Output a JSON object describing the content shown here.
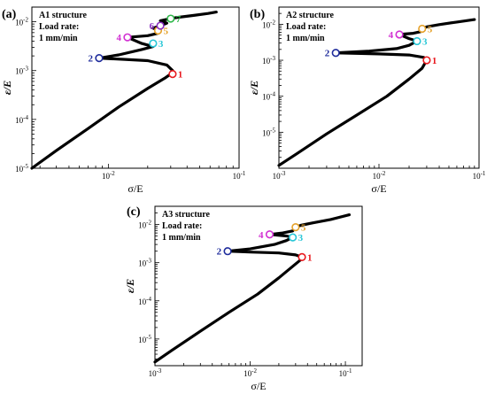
{
  "chart_data": [
    {
      "panel": "(a)",
      "type": "line",
      "annotation": [
        "A1 structure",
        "Load rate:",
        "1 mm/min"
      ],
      "xlabel": "σ/E",
      "ylabel": "ε/E",
      "xscale": "log",
      "yscale": "log",
      "xlim": [
        0.0026,
        0.1
      ],
      "ylim": [
        1e-05,
        0.02
      ],
      "x_ticks": [
        {
          "v": 0.01,
          "label": "10-2"
        },
        {
          "v": 0.1,
          "label": "10-1"
        }
      ],
      "y_ticks": [
        {
          "v": 1e-05,
          "label": "10-5"
        },
        {
          "v": 0.0001,
          "label": "10-4"
        },
        {
          "v": 0.001,
          "label": "10-3"
        },
        {
          "v": 0.01,
          "label": "10-2"
        }
      ],
      "curve": {
        "x": [
          0.0026,
          0.004,
          0.007,
          0.012,
          0.02,
          0.027,
          0.03,
          0.031,
          0.028,
          0.02,
          0.013,
          0.0085,
          0.012,
          0.018,
          0.022,
          0.018,
          0.014,
          0.02,
          0.024,
          0.025,
          0.022,
          0.025,
          0.028,
          0.025,
          0.03,
          0.034,
          0.045,
          0.058,
          0.067
        ],
        "y": [
          1e-05,
          2.3e-05,
          6.5e-05,
          0.00018,
          0.00043,
          0.0007,
          0.00085,
          0.001,
          0.0013,
          0.0016,
          0.0017,
          0.0018,
          0.0021,
          0.0027,
          0.0031,
          0.0036,
          0.0048,
          0.0052,
          0.0058,
          0.0066,
          0.0074,
          0.0083,
          0.0094,
          0.0105,
          0.0116,
          0.0123,
          0.0135,
          0.0148,
          0.0158
        ]
      },
      "points": [
        {
          "label": "1",
          "x": 0.031,
          "y": 0.00085,
          "color": "#e8191e"
        },
        {
          "label": "2",
          "x": 0.0085,
          "y": 0.0018,
          "color": "#1f2c9c"
        },
        {
          "label": "3",
          "x": 0.022,
          "y": 0.0036,
          "color": "#27c6d6"
        },
        {
          "label": "4",
          "x": 0.014,
          "y": 0.0048,
          "color": "#d22fd2"
        },
        {
          "label": "5",
          "x": 0.024,
          "y": 0.0066,
          "color": "#e5a12a"
        },
        {
          "label": "6",
          "x": 0.025,
          "y": 0.0083,
          "color": "#8a2cc0"
        },
        {
          "label": "7",
          "x": 0.03,
          "y": 0.0116,
          "color": "#2fb84a"
        }
      ]
    },
    {
      "panel": "(b)",
      "type": "line",
      "annotation": [
        "A2 structure",
        "Load rate:",
        "1 mm/min"
      ],
      "xlabel": "σ/E",
      "ylabel": "ε/E",
      "xscale": "log",
      "yscale": "log",
      "xlim": [
        0.001,
        0.1
      ],
      "ylim": [
        1e-06,
        0.03
      ],
      "x_ticks": [
        {
          "v": 0.001,
          "label": "10-3"
        },
        {
          "v": 0.01,
          "label": "10-2"
        },
        {
          "v": 0.1,
          "label": "10-1"
        }
      ],
      "y_ticks": [
        {
          "v": 1e-05,
          "label": "10-5"
        },
        {
          "v": 0.0001,
          "label": "10-4"
        },
        {
          "v": 0.001,
          "label": "10-3"
        },
        {
          "v": 0.01,
          "label": "10-2"
        }
      ],
      "curve": {
        "x": [
          0.001,
          0.0015,
          0.003,
          0.006,
          0.012,
          0.02,
          0.027,
          0.03,
          0.028,
          0.02,
          0.01,
          0.0037,
          0.008,
          0.015,
          0.02,
          0.024,
          0.02,
          0.016,
          0.022,
          0.026,
          0.027,
          0.03,
          0.04,
          0.06,
          0.09
        ],
        "y": [
          1.2e-06,
          2.5e-06,
          9e-06,
          3e-05,
          0.0001,
          0.0003,
          0.0006,
          0.001,
          0.0012,
          0.0014,
          0.0015,
          0.0016,
          0.0018,
          0.0021,
          0.0026,
          0.0034,
          0.004,
          0.0052,
          0.0056,
          0.0062,
          0.0075,
          0.0085,
          0.0098,
          0.0115,
          0.0135
        ]
      },
      "points": [
        {
          "label": "1",
          "x": 0.03,
          "y": 0.001,
          "color": "#e8191e"
        },
        {
          "label": "2",
          "x": 0.0037,
          "y": 0.0016,
          "color": "#1f2c9c"
        },
        {
          "label": "3",
          "x": 0.024,
          "y": 0.0034,
          "color": "#27c6d6"
        },
        {
          "label": "4",
          "x": 0.016,
          "y": 0.0052,
          "color": "#d22fd2"
        },
        {
          "label": "5",
          "x": 0.027,
          "y": 0.0075,
          "color": "#e5a12a"
        }
      ]
    },
    {
      "panel": "(c)",
      "type": "line",
      "annotation": [
        "A3 structure",
        "Load rate:",
        "1 mm/min"
      ],
      "xlabel": "σ/E",
      "ylabel": "ε/E",
      "xscale": "log",
      "yscale": "log",
      "xlim": [
        0.001,
        0.15
      ],
      "ylim": [
        2e-06,
        0.03
      ],
      "x_ticks": [
        {
          "v": 0.001,
          "label": "10-3"
        },
        {
          "v": 0.01,
          "label": "10-2"
        },
        {
          "v": 0.1,
          "label": "10-1"
        }
      ],
      "y_ticks": [
        {
          "v": 1e-05,
          "label": "10-5"
        },
        {
          "v": 0.0001,
          "label": "10-4"
        },
        {
          "v": 0.001,
          "label": "10-3"
        },
        {
          "v": 0.01,
          "label": "10-2"
        }
      ],
      "curve": {
        "x": [
          0.001,
          0.0015,
          0.003,
          0.006,
          0.012,
          0.02,
          0.028,
          0.034,
          0.035,
          0.03,
          0.02,
          0.01,
          0.0058,
          0.01,
          0.018,
          0.024,
          0.028,
          0.024,
          0.016,
          0.022,
          0.028,
          0.03,
          0.034,
          0.045,
          0.07,
          0.11
        ],
        "y": [
          2.5e-06,
          5e-06,
          1.6e-05,
          5e-05,
          0.00015,
          0.0004,
          0.0008,
          0.0012,
          0.0014,
          0.0016,
          0.0018,
          0.0019,
          0.002,
          0.0023,
          0.003,
          0.0038,
          0.0046,
          0.005,
          0.0055,
          0.006,
          0.0068,
          0.0085,
          0.0095,
          0.011,
          0.0135,
          0.018
        ]
      },
      "points": [
        {
          "label": "1",
          "x": 0.035,
          "y": 0.0014,
          "color": "#e8191e"
        },
        {
          "label": "2",
          "x": 0.0058,
          "y": 0.002,
          "color": "#1f2c9c"
        },
        {
          "label": "3",
          "x": 0.028,
          "y": 0.0046,
          "color": "#27c6d6"
        },
        {
          "label": "4",
          "x": 0.016,
          "y": 0.0055,
          "color": "#d22fd2"
        },
        {
          "label": "5",
          "x": 0.03,
          "y": 0.0085,
          "color": "#e5a12a"
        }
      ]
    }
  ]
}
